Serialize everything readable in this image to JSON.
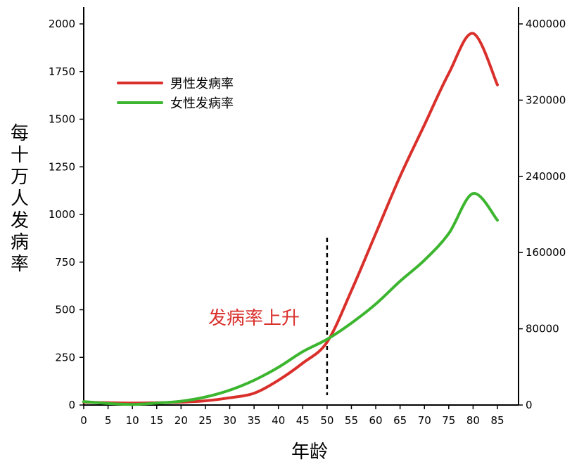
{
  "chart_data": {
    "type": "line",
    "xlabel": "年龄",
    "ylabel": "每十万人发病率",
    "annotation": "发病率上升",
    "xticks": [
      0,
      5,
      10,
      15,
      20,
      25,
      30,
      35,
      40,
      45,
      50,
      55,
      60,
      65,
      70,
      75,
      80,
      85
    ],
    "yticks_left": [
      0,
      250,
      500,
      750,
      1000,
      1250,
      1500,
      1750,
      2000
    ],
    "yticks_right": [
      "0",
      "80000",
      "160000",
      "240000",
      "320000",
      "400000"
    ],
    "ylim_left": [
      0,
      2000
    ],
    "ylim_right": [
      0,
      400000
    ],
    "vline_x": 50,
    "legend_position": "top-left",
    "series": [
      {
        "name": "男性发病率",
        "color": "#d9302c",
        "x": [
          0,
          5,
          10,
          15,
          20,
          25,
          30,
          35,
          40,
          45,
          50,
          55,
          60,
          65,
          70,
          75,
          80,
          85
        ],
        "values": [
          15,
          12,
          10,
          12,
          15,
          22,
          38,
          62,
          130,
          220,
          330,
          600,
          900,
          1200,
          1470,
          1740,
          1950,
          1680
        ]
      },
      {
        "name": "女性发病率",
        "color": "#3cb52f",
        "x": [
          0,
          5,
          10,
          15,
          20,
          25,
          30,
          35,
          40,
          45,
          50,
          55,
          60,
          65,
          70,
          75,
          80,
          85
        ],
        "values": [
          18,
          8,
          3,
          10,
          20,
          42,
          78,
          130,
          198,
          280,
          345,
          430,
          530,
          650,
          760,
          900,
          1110,
          970
        ]
      }
    ]
  }
}
